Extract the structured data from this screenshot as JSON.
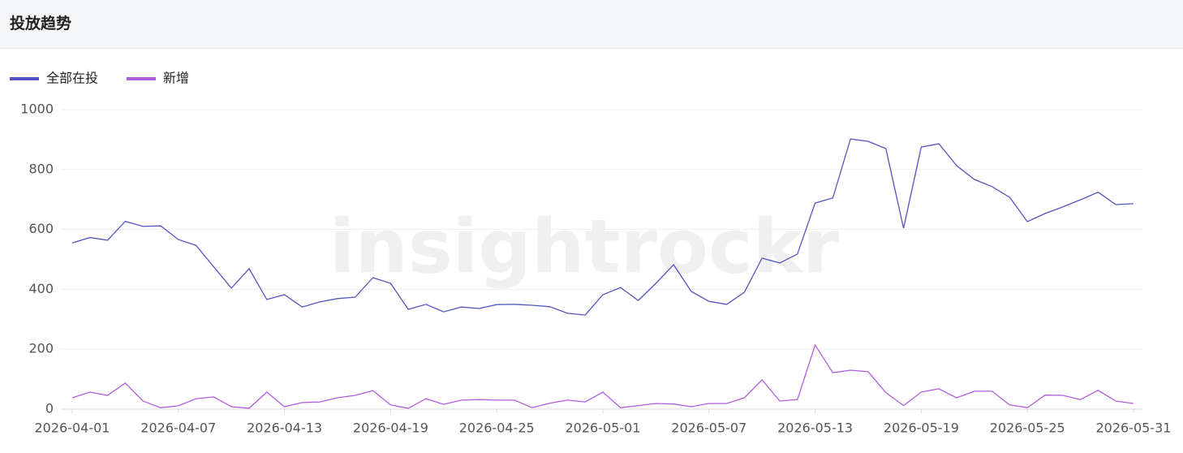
{
  "header": {
    "title": "投放趋势"
  },
  "chart_data": {
    "type": "line",
    "watermark": "insightrockr",
    "x": [
      "2026-04-01",
      "2026-04-02",
      "2026-04-03",
      "2026-04-04",
      "2026-04-05",
      "2026-04-06",
      "2026-04-07",
      "2026-04-08",
      "2026-04-09",
      "2026-04-10",
      "2026-04-11",
      "2026-04-12",
      "2026-04-13",
      "2026-04-14",
      "2026-04-15",
      "2026-04-16",
      "2026-04-17",
      "2026-04-18",
      "2026-04-19",
      "2026-04-20",
      "2026-04-21",
      "2026-04-22",
      "2026-04-23",
      "2026-04-24",
      "2026-04-25",
      "2026-04-26",
      "2026-04-27",
      "2026-04-28",
      "2026-04-29",
      "2026-04-30",
      "2026-05-01",
      "2026-05-02",
      "2026-05-03",
      "2026-05-04",
      "2026-05-05",
      "2026-05-06",
      "2026-05-07",
      "2026-05-08",
      "2026-05-09",
      "2026-05-10",
      "2026-05-11",
      "2026-05-12",
      "2026-05-13",
      "2026-05-14",
      "2026-05-15",
      "2026-05-16",
      "2026-05-17",
      "2026-05-18",
      "2026-05-19",
      "2026-05-20",
      "2026-05-21",
      "2026-05-22",
      "2026-05-23",
      "2026-05-24",
      "2026-05-25",
      "2026-05-26",
      "2026-05-27",
      "2026-05-28",
      "2026-05-29",
      "2026-05-30",
      "2026-05-31"
    ],
    "series": [
      {
        "name": "全部在投",
        "color": "#5454c0",
        "values": [
          555,
          573,
          564,
          627,
          610,
          612,
          566,
          547,
          475,
          404,
          469,
          366,
          382,
          341,
          358,
          369,
          374,
          439,
          420,
          333,
          350,
          325,
          341,
          336,
          349,
          350,
          347,
          342,
          320,
          314,
          382,
          406,
          363,
          420,
          482,
          393,
          360,
          350,
          390,
          504,
          488,
          518,
          688,
          705,
          902,
          894,
          870,
          604,
          875,
          886,
          813,
          767,
          743,
          707,
          626,
          653,
          675,
          699,
          724,
          683,
          686
        ]
      },
      {
        "name": "新增",
        "color": "#b05ee0",
        "values": [
          38,
          57,
          46,
          87,
          27,
          5,
          11,
          35,
          41,
          8,
          3,
          57,
          8,
          22,
          24,
          38,
          46,
          62,
          14,
          3,
          35,
          16,
          30,
          32,
          30,
          30,
          5,
          20,
          30,
          24,
          57,
          5,
          12,
          19,
          17,
          8,
          19,
          19,
          38,
          98,
          27,
          32,
          214,
          122,
          130,
          125,
          55,
          12,
          57,
          68,
          38,
          60,
          60,
          14,
          5,
          47,
          46,
          32,
          63,
          27,
          19
        ]
      }
    ],
    "ylim": [
      0,
      1000
    ],
    "yticks": [
      0,
      200,
      400,
      600,
      800,
      1000
    ],
    "grid": true,
    "legend": "top-left"
  }
}
